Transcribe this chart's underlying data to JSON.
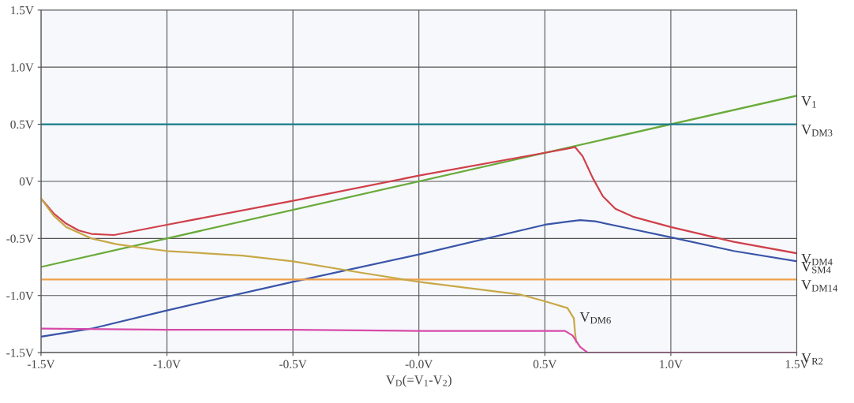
{
  "chart_data": {
    "type": "line",
    "xlabel": "V$_{D}$(=V$_{1}$-V$_{2}$)",
    "xlim": [
      -1.5,
      1.5
    ],
    "ylim": [
      -1.5,
      1.5
    ],
    "xticks": [
      {
        "value": -1.5,
        "label": "-1.5V"
      },
      {
        "value": -1.0,
        "label": "-1.0V"
      },
      {
        "value": -0.5,
        "label": "-0.5V"
      },
      {
        "value": 0,
        "label": "-0.0V"
      },
      {
        "value": 0.5,
        "label": "0.5V"
      },
      {
        "value": 1.0,
        "label": "1.0V"
      },
      {
        "value": 1.5,
        "label": "1.5V"
      }
    ],
    "yticks": [
      {
        "value": -1.5,
        "label": "-1.5V"
      },
      {
        "value": -1.0,
        "label": "-1.0V"
      },
      {
        "value": -0.5,
        "label": "-0.5V"
      },
      {
        "value": 0,
        "label": "0V"
      },
      {
        "value": 0.5,
        "label": "0.5V"
      },
      {
        "value": 1.0,
        "label": "1.0V"
      },
      {
        "value": 1.5,
        "label": "1.5V"
      }
    ],
    "grid": true,
    "line_style": "solid",
    "marker": "none",
    "series": [
      {
        "name": "V$_{1}$",
        "color": "#6aaa3a",
        "x": [
          -1.5,
          1.5
        ],
        "values": [
          -0.75,
          0.75
        ]
      },
      {
        "name": "V$_{DM3}$",
        "color": "#1a7a8a",
        "x": [
          -1.5,
          1.5
        ],
        "values": [
          0.5,
          0.5
        ]
      },
      {
        "name": "V$_{DM4}$",
        "color": "#d0404a",
        "x": [
          -1.5,
          -1.45,
          -1.4,
          -1.35,
          -1.3,
          -1.21,
          -1.0,
          -0.5,
          0.0,
          0.5,
          0.6,
          0.62,
          0.65,
          0.69,
          0.73,
          0.78,
          0.85,
          1.0,
          1.25,
          1.5
        ],
        "values": [
          -0.15,
          -0.28,
          -0.37,
          -0.43,
          -0.46,
          -0.47,
          -0.38,
          -0.17,
          0.05,
          0.25,
          0.29,
          0.3,
          0.22,
          0.03,
          -0.13,
          -0.24,
          -0.31,
          -0.4,
          -0.53,
          -0.63
        ]
      },
      {
        "name": "V$_{SM4}$",
        "color": "#3a55a8",
        "x": [
          -1.5,
          -1.3,
          -1.0,
          -0.5,
          0.0,
          0.5,
          0.6,
          0.64,
          0.7,
          0.85,
          1.0,
          1.25,
          1.5
        ],
        "values": [
          -1.36,
          -1.29,
          -1.13,
          -0.88,
          -0.64,
          -0.38,
          -0.35,
          -0.34,
          -0.35,
          -0.42,
          -0.49,
          -0.61,
          -0.7
        ]
      },
      {
        "name": "V$_{DM14}$",
        "color": "#f0a04a",
        "x": [
          -1.5,
          1.5
        ],
        "values": [
          -0.86,
          -0.86
        ]
      },
      {
        "name": "V$_{DM6}$",
        "color": "#c8a848",
        "x": [
          -1.5,
          -1.45,
          -1.4,
          -1.3,
          -1.2,
          -1.11,
          -1.0,
          -0.7,
          -0.5,
          -0.23,
          0.0,
          0.4,
          0.5,
          0.59,
          0.615,
          0.62,
          0.625
        ],
        "values": [
          -0.15,
          -0.3,
          -0.4,
          -0.5,
          -0.55,
          -0.58,
          -0.61,
          -0.65,
          -0.7,
          -0.8,
          -0.88,
          -0.99,
          -1.05,
          -1.11,
          -1.2,
          -1.33,
          -1.41
        ]
      },
      {
        "name": "V$_{R2}$",
        "color": "#d84aa8",
        "x": [
          -1.5,
          -1.0,
          -0.5,
          0.0,
          0.58,
          0.61,
          0.64,
          0.67,
          1.5
        ],
        "values": [
          -1.29,
          -1.3,
          -1.3,
          -1.31,
          -1.31,
          -1.35,
          -1.45,
          -1.5,
          -1.5
        ]
      }
    ]
  }
}
